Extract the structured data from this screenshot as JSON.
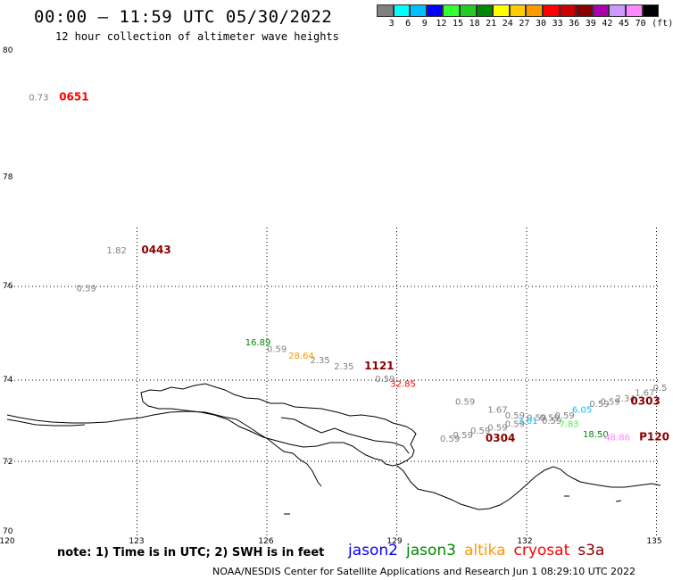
{
  "header": {
    "title": "00:00 – 11:59 UTC 05/30/2022",
    "subtitle": "12 hour collection of altimeter wave heights"
  },
  "color_scale": {
    "colors": [
      "#808080",
      "#00ffff",
      "#00bfff",
      "#0000ff",
      "#33ff33",
      "#22cc22",
      "#008800",
      "#ffff00",
      "#ffcc00",
      "#ff9900",
      "#ff0000",
      "#cc0000",
      "#880000",
      "#aa00aa",
      "#cc99ff",
      "#ff88ff",
      "#000000"
    ],
    "labels": [
      "3",
      "6",
      "9",
      "12",
      "15",
      "18",
      "21",
      "24",
      "27",
      "30",
      "33",
      "36",
      "39",
      "42",
      "45",
      "70",
      "(ft)"
    ]
  },
  "axes": {
    "x_ticks": [
      "120",
      "123",
      "126",
      "129",
      "132",
      "135"
    ],
    "y_ticks": [
      "70",
      "72",
      "74",
      "76",
      "78",
      "80"
    ]
  },
  "observations": [
    {
      "text": "0.73",
      "lon": 120.5,
      "lat": 79.22,
      "color": "#808080"
    },
    {
      "text": "0651",
      "lon": 121.2,
      "lat": 79.22,
      "color": "#ff0000",
      "bold": true
    },
    {
      "text": "1.82",
      "lon": 122.3,
      "lat": 76.62,
      "color": "#808080"
    },
    {
      "text": "0443",
      "lon": 123.1,
      "lat": 76.62,
      "color": "#880000",
      "bold": true
    },
    {
      "text": "0.59",
      "lon": 121.6,
      "lat": 75.9,
      "color": "#808080"
    },
    {
      "text": "16.89",
      "lon": 125.5,
      "lat": 74.74,
      "color": "#008800"
    },
    {
      "text": "0.59",
      "lon": 126.0,
      "lat": 74.6,
      "color": "#808080"
    },
    {
      "text": "28.64",
      "lon": 126.5,
      "lat": 74.46,
      "color": "#ff9900"
    },
    {
      "text": "2.35",
      "lon": 127.0,
      "lat": 74.36,
      "color": "#808080"
    },
    {
      "text": "2.35",
      "lon": 127.55,
      "lat": 74.23,
      "color": "#808080"
    },
    {
      "text": "1121",
      "lon": 128.25,
      "lat": 74.23,
      "color": "#880000",
      "bold": true
    },
    {
      "text": "0.59",
      "lon": 128.5,
      "lat": 73.96,
      "color": "#808080"
    },
    {
      "text": "32.85",
      "lon": 128.85,
      "lat": 73.84,
      "color": "#ff0000"
    },
    {
      "text": "0.59",
      "lon": 130.35,
      "lat": 73.4,
      "color": "#808080"
    },
    {
      "text": "1.67",
      "lon": 131.1,
      "lat": 73.2,
      "color": "#808080"
    },
    {
      "text": "0.59",
      "lon": 131.5,
      "lat": 73.06,
      "color": "#808080"
    },
    {
      "text": "0.59",
      "lon": 132.0,
      "lat": 73.0,
      "color": "#808080"
    },
    {
      "text": "0.59",
      "lon": 132.3,
      "lat": 73.0,
      "color": "#808080"
    },
    {
      "text": "0.59",
      "lon": 132.65,
      "lat": 73.06,
      "color": "#808080"
    },
    {
      "text": "6.05",
      "lon": 133.05,
      "lat": 73.2,
      "color": "#00bfff"
    },
    {
      "text": "0.59",
      "lon": 133.45,
      "lat": 73.34,
      "color": "#808080"
    },
    {
      "text": "0.59",
      "lon": 133.7,
      "lat": 73.4,
      "color": "#808080"
    },
    {
      "text": "2.34",
      "lon": 134.05,
      "lat": 73.47,
      "color": "#808080"
    },
    {
      "text": "1.67",
      "lon": 134.5,
      "lat": 73.61,
      "color": "#808080"
    },
    {
      "text": "0.5",
      "lon": 134.92,
      "lat": 73.74,
      "color": "#808080"
    },
    {
      "text": "0303",
      "lon": 134.4,
      "lat": 73.4,
      "color": "#880000",
      "bold": true
    },
    {
      "text": "3.01",
      "lon": 131.8,
      "lat": 72.92,
      "color": "#00bfff"
    },
    {
      "text": "0.59",
      "lon": 132.35,
      "lat": 72.92,
      "color": "#808080"
    },
    {
      "text": "7.83",
      "lon": 132.75,
      "lat": 72.85,
      "color": "#33ff33"
    },
    {
      "text": "0.59",
      "lon": 131.5,
      "lat": 72.85,
      "color": "#808080"
    },
    {
      "text": "0.59",
      "lon": 131.1,
      "lat": 72.76,
      "color": "#808080"
    },
    {
      "text": "0.59",
      "lon": 130.7,
      "lat": 72.68,
      "color": "#808080"
    },
    {
      "text": "0.59",
      "lon": 130.3,
      "lat": 72.57,
      "color": "#808080"
    },
    {
      "text": "0.59",
      "lon": 130.0,
      "lat": 72.48,
      "color": "#808080"
    },
    {
      "text": "0304",
      "lon": 131.05,
      "lat": 72.48,
      "color": "#880000",
      "bold": true
    },
    {
      "text": "18.50",
      "lon": 133.3,
      "lat": 72.59,
      "color": "#008800"
    },
    {
      "text": "48.86",
      "lon": 133.8,
      "lat": 72.52,
      "color": "#ff88ff"
    },
    {
      "text": "P120",
      "lon": 134.6,
      "lat": 72.52,
      "color": "#880000",
      "bold": true
    }
  ],
  "footer": {
    "note": "note:  1) Time is in UTC;  2) SWH is in feet",
    "satellites": [
      {
        "name": "jason2",
        "color": "#0000ff"
      },
      {
        "name": "jason3",
        "color": "#008800"
      },
      {
        "name": "altika",
        "color": "#ff9900"
      },
      {
        "name": "cryosat",
        "color": "#ff0000"
      },
      {
        "name": "s3a",
        "color": "#880000"
      }
    ],
    "credit": "NOAA/NESDIS Center for Satellite Applications and Research     Jun  1 08:29:10 UTC 2022"
  }
}
